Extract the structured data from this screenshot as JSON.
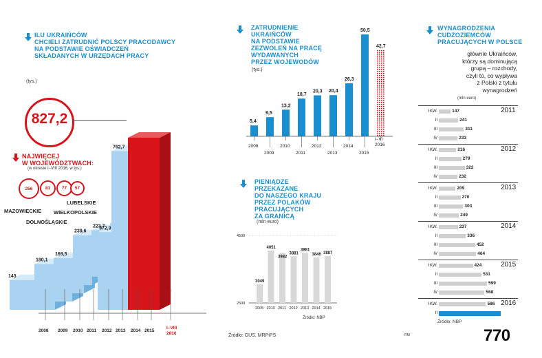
{
  "chart_data": [
    {
      "type": "bar",
      "title": "ILU UKRAIŃCÓW\nCHCIELI ZATRUDNIĆ POLSCY PRACODAWCY\nNA PODSTAWIE OŚWIADCZEŃ\nSKŁADANYCH W URZĘDACH PRACY",
      "unit": "(tys.)",
      "categories": [
        "2008",
        "2009",
        "2010",
        "2011",
        "2012",
        "2013",
        "2014",
        "2015",
        "I–VIII\n2016"
      ],
      "values": [
        143,
        180.1,
        169.5,
        239.6,
        223.7,
        217.6,
        372.9,
        762.7,
        827.2
      ],
      "value_labels": [
        "143",
        "180,1",
        "169,5",
        "239,6",
        "223,7",
        "217,6",
        "372,9",
        "762,7",
        "827,2"
      ],
      "highlight_color": "#d7141a",
      "bar_color": "#a9d3f0"
    },
    {
      "type": "bar",
      "title": "NAJWIĘCEJ\nW WOJEWÓDZTWACH:",
      "subtitle": "(w okresie I–VIII 2016, w tys.)",
      "categories": [
        "MAZOWIECKIE",
        "DOLNOŚLĄSKIE",
        "WIELKOPOLSKIE",
        "LUBELSKIE"
      ],
      "values": [
        256,
        81,
        77,
        57
      ]
    },
    {
      "type": "bar",
      "title": "ZATRUDNIENIE\nUKRAIŃCÓW\nNA PODSTAWIE\nZEZWOLEŃ NA PRACĘ\nWYDAWANYCH\nPRZEZ WOJEWODÓW",
      "unit": "(tys.)",
      "categories": [
        "2008",
        "2009",
        "2010",
        "2011",
        "2012",
        "2013",
        "2014",
        "2015",
        "I–VI\n2016"
      ],
      "values": [
        5.4,
        9.5,
        13.2,
        18.7,
        20.3,
        20.4,
        26.3,
        50.5,
        42.7
      ],
      "value_labels": [
        "5,4",
        "9,5",
        "13,2",
        "18,7",
        "20,3",
        "20,4",
        "26,3",
        "50,5",
        "42,7"
      ],
      "bar_color": "#1a8fd0",
      "partial_color": "#d7141a"
    },
    {
      "type": "bar",
      "title": "PIENIĄDZE\nPRZEKAZANE\nDO NASZEGO KRAJU\nPRZEZ POLAKÓW\nPRACUJĄCYCH\nZA GRANICĄ",
      "unit": "(mln euro)",
      "categories": [
        "2005",
        "2010",
        "2011",
        "2012",
        "2013",
        "2014",
        "2015"
      ],
      "values": [
        3049,
        4051,
        3982,
        3881,
        3981,
        3846,
        3887
      ],
      "ylim": [
        2500,
        4500
      ],
      "yticks": [
        "4500",
        "2500"
      ],
      "source": "Źródło: NBP",
      "bar_color": "#d8d8d8"
    },
    {
      "type": "bar",
      "title": "WYNAGRODZENIA\nCUDZOZIEMCÓW\nPRACUJĄCYCH W POLSCE",
      "description": "głównie Ukraińców,\nktórzy są dominującą\ngrupą – rozchody,\nczyli to, co wypływa\nz Polski z tytułu\nwynagrodzeń",
      "unit": "(mln euro)",
      "years": [
        {
          "year": "2011",
          "quarters": [
            "I KW.",
            "II",
            "III",
            "IV"
          ],
          "values": [
            147,
            241,
            311,
            233
          ]
        },
        {
          "year": "2012",
          "quarters": [
            "I KW.",
            "II",
            "III",
            "IV"
          ],
          "values": [
            216,
            279,
            322,
            232
          ]
        },
        {
          "year": "2013",
          "quarters": [
            "I KW.",
            "II",
            "III",
            "IV"
          ],
          "values": [
            209,
            270,
            303,
            249
          ]
        },
        {
          "year": "2014",
          "quarters": [
            "I KW.",
            "II",
            "III",
            "IV"
          ],
          "values": [
            237,
            336,
            452,
            464
          ]
        },
        {
          "year": "2015",
          "quarters": [
            "I KW.",
            "II",
            "III",
            "IV"
          ],
          "values": [
            424,
            531,
            599,
            568
          ]
        },
        {
          "year": "2016",
          "quarters": [
            "I KW.",
            "II"
          ],
          "values": [
            586,
            770
          ]
        }
      ],
      "source": "Źródło: NBP",
      "bar_color": "#cfcfcf",
      "highlight_color": "#1a8fd0"
    }
  ],
  "footer": {
    "source": "Źródło: GUS, MRPiPS",
    "initials": "RM"
  }
}
